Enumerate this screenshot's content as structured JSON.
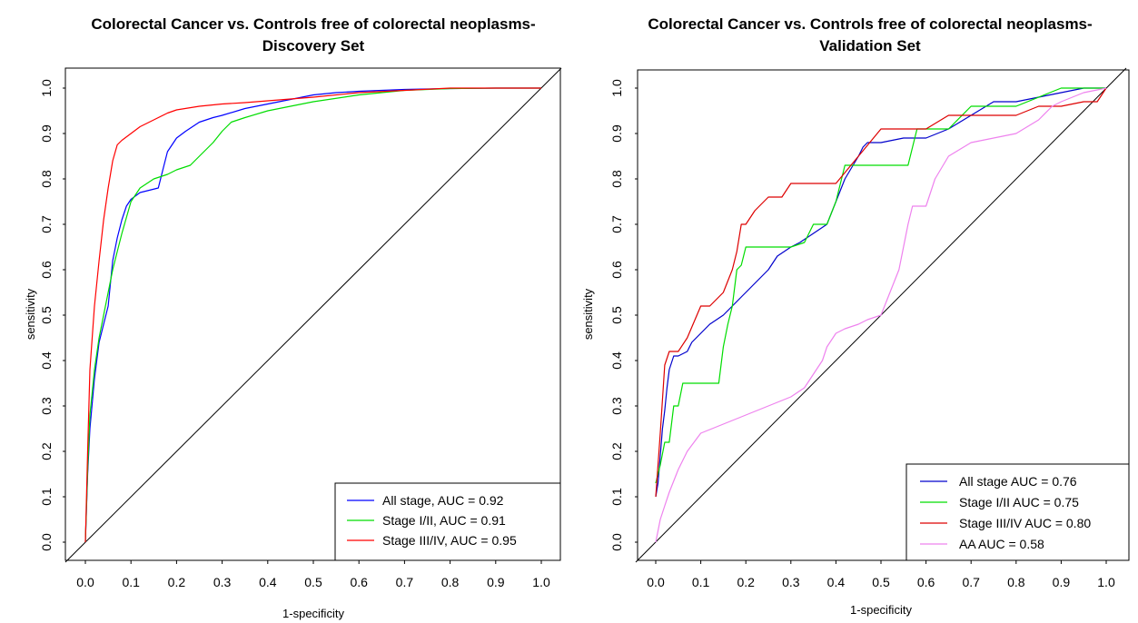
{
  "chart_data": [
    {
      "type": "line",
      "title_line1": "Colorectal Cancer vs. Controls free of colorectal neoplasms-",
      "title_line2": "Discovery Set",
      "xlabel": "1-specificity",
      "ylabel": "sensitivity",
      "xlim": [
        0,
        1
      ],
      "ylim": [
        0,
        1
      ],
      "xticks": [
        "0.0",
        "0.1",
        "0.2",
        "0.3",
        "0.4",
        "0.5",
        "0.6",
        "0.7",
        "0.8",
        "0.9",
        "1.0"
      ],
      "yticks": [
        "0.0",
        "0.1",
        "0.2",
        "0.3",
        "0.4",
        "0.5",
        "0.6",
        "0.7",
        "0.8",
        "0.9",
        "1.0"
      ],
      "diagonal": true,
      "legend_position": "bottom-right",
      "series": [
        {
          "name": "All stage, AUC = 0.92",
          "color": "#0000ff",
          "x": [
            0,
            0.005,
            0.01,
            0.02,
            0.03,
            0.04,
            0.05,
            0.06,
            0.07,
            0.08,
            0.09,
            0.1,
            0.12,
            0.14,
            0.16,
            0.17,
            0.18,
            0.2,
            0.22,
            0.25,
            0.28,
            0.3,
            0.35,
            0.4,
            0.45,
            0.5,
            0.55,
            0.6,
            0.7,
            0.8,
            0.9,
            1.0
          ],
          "y": [
            0,
            0.15,
            0.25,
            0.36,
            0.44,
            0.48,
            0.52,
            0.62,
            0.67,
            0.71,
            0.74,
            0.755,
            0.77,
            0.775,
            0.78,
            0.82,
            0.86,
            0.89,
            0.905,
            0.925,
            0.935,
            0.94,
            0.955,
            0.965,
            0.975,
            0.985,
            0.99,
            0.993,
            0.997,
            0.999,
            1.0,
            1.0
          ]
        },
        {
          "name": "Stage I/II, AUC = 0.91",
          "color": "#00dd00",
          "x": [
            0,
            0.005,
            0.01,
            0.02,
            0.03,
            0.04,
            0.05,
            0.06,
            0.07,
            0.08,
            0.1,
            0.12,
            0.15,
            0.18,
            0.2,
            0.23,
            0.25,
            0.28,
            0.3,
            0.32,
            0.35,
            0.4,
            0.45,
            0.5,
            0.6,
            0.7,
            0.8,
            0.9,
            1.0
          ],
          "y": [
            0,
            0.16,
            0.28,
            0.38,
            0.45,
            0.5,
            0.55,
            0.6,
            0.64,
            0.68,
            0.75,
            0.78,
            0.8,
            0.81,
            0.82,
            0.83,
            0.85,
            0.88,
            0.905,
            0.925,
            0.935,
            0.95,
            0.96,
            0.97,
            0.985,
            0.995,
            0.999,
            1.0,
            1.0
          ]
        },
        {
          "name": "Stage III/IV, AUC = 0.95",
          "color": "#ff0000",
          "x": [
            0,
            0.005,
            0.01,
            0.02,
            0.03,
            0.04,
            0.05,
            0.06,
            0.07,
            0.08,
            0.1,
            0.12,
            0.15,
            0.18,
            0.2,
            0.25,
            0.3,
            0.35,
            0.4,
            0.5,
            0.6,
            0.7,
            0.8,
            0.9,
            1.0
          ],
          "y": [
            0,
            0.2,
            0.38,
            0.52,
            0.62,
            0.71,
            0.78,
            0.84,
            0.875,
            0.885,
            0.9,
            0.915,
            0.93,
            0.945,
            0.952,
            0.96,
            0.965,
            0.968,
            0.972,
            0.98,
            0.99,
            0.995,
            1.0,
            1.0,
            1.0
          ]
        }
      ]
    },
    {
      "type": "line",
      "title_line1": "Colorectal Cancer vs. Controls free of colorectal neoplasms-",
      "title_line2": "Validation Set",
      "xlabel": "1-specificity",
      "ylabel": "sensitivity",
      "xlim": [
        0,
        1
      ],
      "ylim": [
        0,
        1
      ],
      "xticks": [
        "0.0",
        "0.1",
        "0.2",
        "0.3",
        "0.4",
        "0.5",
        "0.6",
        "0.7",
        "0.8",
        "0.9",
        "1.0"
      ],
      "yticks": [
        "0.0",
        "0.1",
        "0.2",
        "0.3",
        "0.4",
        "0.5",
        "0.6",
        "0.7",
        "0.8",
        "0.9",
        "1.0"
      ],
      "diagonal": true,
      "legend_position": "bottom-right",
      "series": [
        {
          "name": "All stage AUC = 0.76",
          "color": "#0000cc",
          "x": [
            0,
            0.005,
            0.01,
            0.015,
            0.02,
            0.025,
            0.03,
            0.04,
            0.05,
            0.07,
            0.08,
            0.1,
            0.12,
            0.15,
            0.17,
            0.19,
            0.2,
            0.22,
            0.25,
            0.27,
            0.3,
            0.32,
            0.35,
            0.38,
            0.4,
            0.42,
            0.45,
            0.46,
            0.47,
            0.5,
            0.55,
            0.6,
            0.65,
            0.7,
            0.75,
            0.8,
            0.85,
            0.9,
            0.95,
            1.0
          ],
          "y": [
            0.1,
            0.13,
            0.19,
            0.25,
            0.29,
            0.34,
            0.38,
            0.41,
            0.41,
            0.42,
            0.44,
            0.46,
            0.48,
            0.5,
            0.52,
            0.54,
            0.55,
            0.57,
            0.6,
            0.63,
            0.65,
            0.66,
            0.68,
            0.7,
            0.75,
            0.8,
            0.85,
            0.87,
            0.88,
            0.88,
            0.89,
            0.89,
            0.91,
            0.94,
            0.97,
            0.97,
            0.98,
            0.99,
            1.0,
            1.0
          ]
        },
        {
          "name": "Stage I/II AUC = 0.75",
          "color": "#00dd00",
          "x": [
            0,
            0.01,
            0.02,
            0.03,
            0.04,
            0.05,
            0.06,
            0.08,
            0.1,
            0.14,
            0.15,
            0.16,
            0.17,
            0.18,
            0.19,
            0.2,
            0.25,
            0.3,
            0.33,
            0.35,
            0.38,
            0.4,
            0.42,
            0.45,
            0.47,
            0.48,
            0.56,
            0.58,
            0.6,
            0.65,
            0.7,
            0.8,
            0.9,
            1.0
          ],
          "y": [
            0.13,
            0.17,
            0.22,
            0.22,
            0.3,
            0.3,
            0.35,
            0.35,
            0.35,
            0.35,
            0.43,
            0.48,
            0.52,
            0.6,
            0.61,
            0.65,
            0.65,
            0.65,
            0.66,
            0.7,
            0.7,
            0.75,
            0.83,
            0.83,
            0.83,
            0.83,
            0.83,
            0.91,
            0.91,
            0.91,
            0.96,
            0.96,
            1.0,
            1.0
          ]
        },
        {
          "name": "Stage III/IV AUC = 0.80",
          "color": "#dd0000",
          "x": [
            0,
            0.01,
            0.02,
            0.03,
            0.05,
            0.07,
            0.1,
            0.12,
            0.15,
            0.17,
            0.18,
            0.19,
            0.2,
            0.22,
            0.25,
            0.28,
            0.3,
            0.35,
            0.4,
            0.45,
            0.5,
            0.55,
            0.6,
            0.65,
            0.7,
            0.75,
            0.8,
            0.85,
            0.9,
            0.95,
            0.98,
            1.0
          ],
          "y": [
            0.1,
            0.24,
            0.39,
            0.42,
            0.42,
            0.45,
            0.52,
            0.52,
            0.55,
            0.6,
            0.64,
            0.7,
            0.7,
            0.73,
            0.76,
            0.76,
            0.79,
            0.79,
            0.79,
            0.85,
            0.91,
            0.91,
            0.91,
            0.94,
            0.94,
            0.94,
            0.94,
            0.96,
            0.96,
            0.97,
            0.97,
            1.0
          ]
        },
        {
          "name": "AA AUC = 0.58",
          "color": "#ee82ee",
          "x": [
            0,
            0.01,
            0.02,
            0.03,
            0.05,
            0.07,
            0.1,
            0.15,
            0.2,
            0.25,
            0.3,
            0.33,
            0.35,
            0.37,
            0.38,
            0.4,
            0.42,
            0.45,
            0.47,
            0.5,
            0.52,
            0.54,
            0.55,
            0.56,
            0.57,
            0.6,
            0.62,
            0.65,
            0.7,
            0.75,
            0.8,
            0.85,
            0.88,
            0.9,
            0.95,
            1.0
          ],
          "y": [
            0,
            0.05,
            0.08,
            0.11,
            0.16,
            0.2,
            0.24,
            0.26,
            0.28,
            0.3,
            0.32,
            0.34,
            0.37,
            0.4,
            0.43,
            0.46,
            0.47,
            0.48,
            0.49,
            0.5,
            0.55,
            0.6,
            0.65,
            0.7,
            0.74,
            0.74,
            0.8,
            0.85,
            0.88,
            0.89,
            0.9,
            0.93,
            0.96,
            0.97,
            0.99,
            1.0
          ]
        }
      ]
    }
  ]
}
